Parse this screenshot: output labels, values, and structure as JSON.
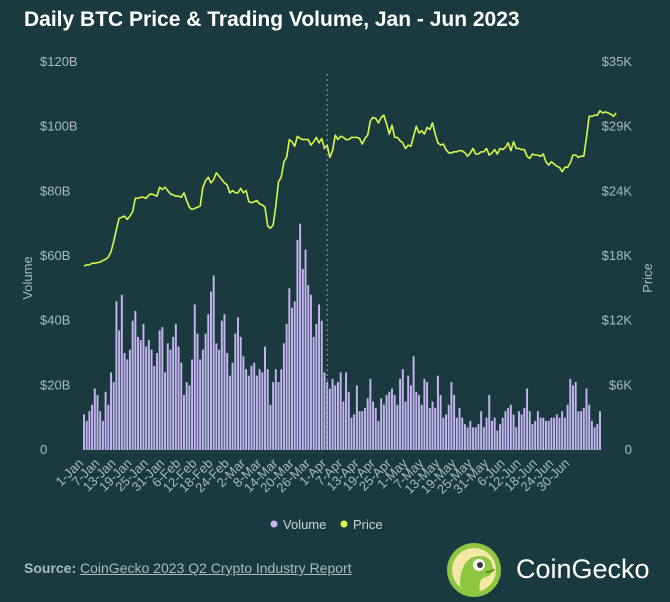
{
  "chart_data": {
    "type": "bar+line",
    "title": "Daily BTC Price & Trading Volume, Jan - Jun 2023",
    "y_left_label": "Volume",
    "y_right_label": "Price",
    "y_left_ticks": [
      "0",
      "$20B",
      "$40B",
      "$60B",
      "$80B",
      "$100B",
      "$120B"
    ],
    "y_right_ticks": [
      "0",
      "$6K",
      "$12K",
      "$18K",
      "$24K",
      "$29K",
      "$35K"
    ],
    "y_left_range": [
      0,
      120
    ],
    "y_right_range": [
      0,
      35000
    ],
    "x_ticks": [
      "1-Jan",
      "7-Jan",
      "13-Jan",
      "19-Jan",
      "25-Jan",
      "31-Jan",
      "6-Feb",
      "12-Feb",
      "18-Feb",
      "24-Feb",
      "2-Mar",
      "8-Mar",
      "14-Mar",
      "20-Mar",
      "26-Mar",
      "1-Apr",
      "7-Apr",
      "13-Apr",
      "19-Apr",
      "25-Apr",
      "1-May",
      "7-May",
      "13-May",
      "19-May",
      "25-May",
      "31-May",
      "6-Jun",
      "12-Jun",
      "18-Jun",
      "24-Jun",
      "30-Jun"
    ],
    "start_date": "1-Jan",
    "end_date": "30-Jun",
    "marker_date": "1-Apr",
    "legend": [
      {
        "name": "Volume",
        "color": "#c4b5f0"
      },
      {
        "name": "Price",
        "color": "#d9f84b"
      }
    ],
    "series": [
      {
        "name": "Volume",
        "unit": "USD billions",
        "values": [
          11,
          9,
          12,
          14,
          19,
          17,
          12,
          9,
          18,
          14,
          24,
          21,
          46,
          37,
          48,
          30,
          28,
          31,
          40,
          43,
          35,
          34,
          39,
          32,
          34,
          31,
          26,
          30,
          37,
          38,
          24,
          33,
          31,
          35,
          39,
          32,
          27,
          17,
          21,
          20,
          28,
          45,
          36,
          28,
          31,
          36,
          42,
          49,
          54,
          33,
          31,
          40,
          42,
          30,
          23,
          27,
          36,
          41,
          35,
          29,
          25,
          23,
          26,
          27,
          23,
          25,
          24,
          32,
          25,
          14,
          21,
          25,
          21,
          25,
          33,
          39,
          50,
          44,
          46,
          65,
          70,
          56,
          62,
          51,
          48,
          35,
          39,
          45,
          40,
          24,
          21,
          19,
          22,
          20,
          21,
          24,
          15,
          24,
          18,
          10,
          11,
          20,
          12,
          12,
          13,
          16,
          22,
          15,
          13,
          9,
          16,
          14,
          17,
          18,
          19,
          17,
          14,
          22,
          25,
          15,
          23,
          20,
          29,
          18,
          17,
          14,
          22,
          21,
          13,
          15,
          13,
          23,
          17,
          10,
          11,
          14,
          21,
          17,
          10,
          13,
          10,
          8,
          7,
          9,
          7,
          7,
          8,
          12,
          7,
          10,
          17,
          9,
          10,
          6,
          8,
          10,
          12,
          13,
          14,
          11,
          7,
          12,
          11,
          13,
          19,
          12,
          8,
          9,
          12,
          10,
          10,
          9,
          9,
          10,
          10,
          11,
          10,
          12,
          10,
          14,
          22,
          20,
          21,
          12,
          12,
          13,
          19,
          14,
          9,
          7,
          8,
          12
        ]
      },
      {
        "name": "Price",
        "unit": "USD",
        "values": [
          16600,
          16700,
          16700,
          16850,
          16850,
          16900,
          16950,
          17100,
          17200,
          17400,
          17900,
          18800,
          19900,
          20900,
          21000,
          21100,
          20800,
          21100,
          21500,
          22700,
          22700,
          22800,
          22800,
          22700,
          23000,
          23100,
          23000,
          22900,
          23700,
          23500,
          23700,
          23400,
          23100,
          23000,
          22900,
          22900,
          22800,
          23200,
          22500,
          21900,
          21700,
          21800,
          21900,
          22000,
          23700,
          24300,
          24600,
          24100,
          24400,
          25000,
          24700,
          24400,
          24100,
          23900,
          23200,
          23400,
          23200,
          23200,
          23600,
          23200,
          23400,
          22400,
          22300,
          22400,
          22500,
          22200,
          22100,
          21900,
          20200,
          20000,
          20300,
          22000,
          24200,
          24600,
          26000,
          26400,
          28000,
          27800,
          27400,
          28300,
          28100,
          28000,
          28000,
          28000,
          27500,
          27800,
          28200,
          27700,
          28100,
          27200,
          27500,
          26400,
          27000,
          28400,
          28000,
          28300,
          28200,
          28000,
          28000,
          28200,
          28200,
          28200,
          28100,
          27600,
          28100,
          28400,
          29700,
          30000,
          29900,
          29500,
          30000,
          30200,
          29400,
          28500,
          29300,
          28200,
          28200,
          27900,
          27700,
          27200,
          27500,
          27400,
          28300,
          29200,
          28600,
          28800,
          28500,
          29100,
          28900,
          29500,
          28500,
          27700,
          27500,
          27600,
          27100,
          26800,
          26800,
          26900,
          26900,
          27000,
          27000,
          26800,
          26500,
          26800,
          27200,
          26700,
          26700,
          26900,
          26900,
          27200,
          26600,
          26800,
          27100,
          26700,
          27200,
          27100,
          27300,
          27700,
          27000,
          27800,
          27200,
          27200,
          27100,
          27100,
          26500,
          26300,
          26700,
          26600,
          26600,
          26500,
          26700,
          26000,
          25700,
          26000,
          25800,
          25600,
          25500,
          25100,
          25500,
          25500,
          25900,
          26600,
          26600,
          26400,
          26500,
          26500,
          28200,
          30100,
          30100,
          30200,
          30200,
          30600,
          30400,
          30500,
          30400,
          30300,
          30100,
          30400
        ]
      }
    ]
  },
  "footer": {
    "source_label": "Source:",
    "source_text": "CoinGecko 2023 Q2 Crypto Industry Report"
  },
  "brand": {
    "name": "CoinGecko",
    "logo_icon": "gecko-logo-icon"
  },
  "colors": {
    "background": "#1b3a3f",
    "volume_bar": "#c4b5f0",
    "price_line": "#d9f84b",
    "axis_text": "#a9bcbf"
  }
}
